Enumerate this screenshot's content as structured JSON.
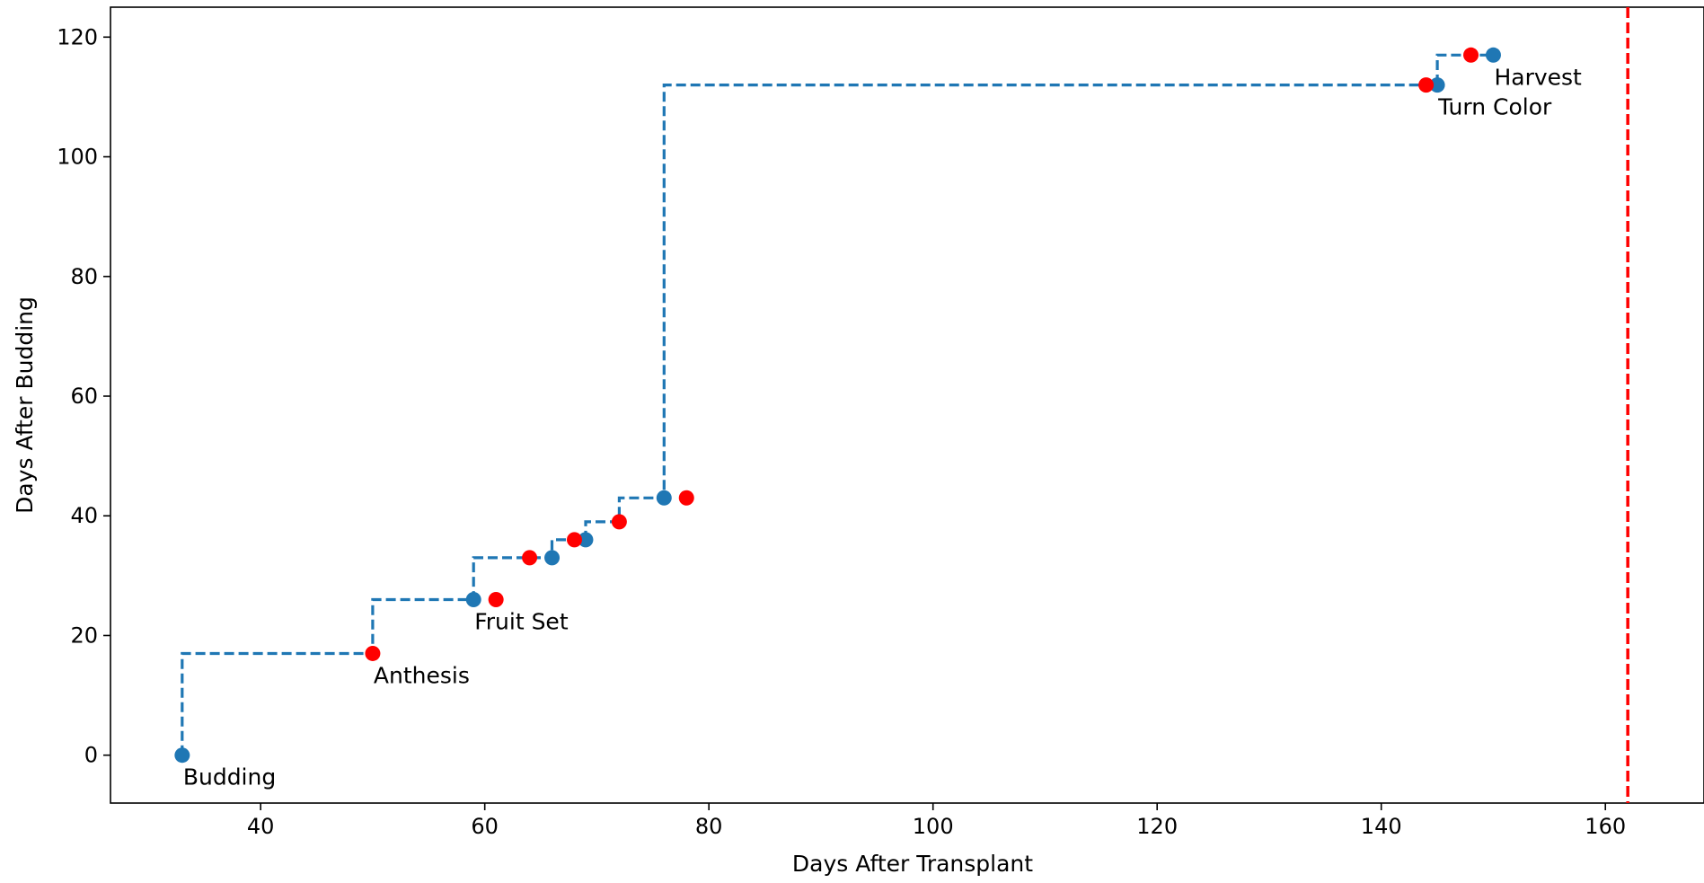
{
  "chart_data": {
    "type": "scatter",
    "title": "",
    "xlabel": "Days After Transplant",
    "ylabel": "Days After Budding",
    "xlim": [
      26.6,
      168.8
    ],
    "ylim": [
      -8,
      125
    ],
    "x_ticks": [
      40,
      60,
      80,
      100,
      120,
      140,
      160
    ],
    "y_ticks": [
      0,
      20,
      40,
      60,
      80,
      100,
      120
    ],
    "grid": false,
    "legend": "none",
    "colors": {
      "blue": "#1f77b4",
      "red": "#ff0000"
    },
    "step_line": {
      "style": "dashed",
      "color": "#1f77b4",
      "points": [
        [
          33,
          0
        ],
        [
          33,
          17
        ],
        [
          50,
          17
        ],
        [
          50,
          26
        ],
        [
          59,
          26
        ],
        [
          59,
          33
        ],
        [
          66,
          33
        ],
        [
          66,
          36
        ],
        [
          69,
          36
        ],
        [
          69,
          39
        ],
        [
          72,
          39
        ],
        [
          72,
          43
        ],
        [
          76,
          43
        ],
        [
          76,
          112
        ],
        [
          145,
          112
        ],
        [
          145,
          117
        ],
        [
          150,
          117
        ]
      ]
    },
    "series": [
      {
        "color": "#1f77b4",
        "x": [
          33,
          59,
          66,
          69,
          76,
          145,
          150
        ],
        "y": [
          0,
          26,
          33,
          36,
          43,
          112,
          117
        ]
      },
      {
        "color": "#ff0000",
        "x": [
          50,
          61,
          64,
          68,
          72,
          78,
          144,
          148
        ],
        "y": [
          17,
          26,
          33,
          36,
          39,
          43,
          112,
          117
        ]
      }
    ],
    "vertical_line": {
      "x": 162,
      "color": "#ff0000",
      "style": "dashed"
    },
    "annotations": [
      {
        "text": "Budding",
        "x": 33,
        "y": 0
      },
      {
        "text": "Anthesis",
        "x": 50,
        "y": 17
      },
      {
        "text": "Fruit Set",
        "x": 59,
        "y": 26
      },
      {
        "text": "Turn Color",
        "x": 145,
        "y": 112
      },
      {
        "text": "Harvest",
        "x": 150,
        "y": 117
      }
    ]
  }
}
